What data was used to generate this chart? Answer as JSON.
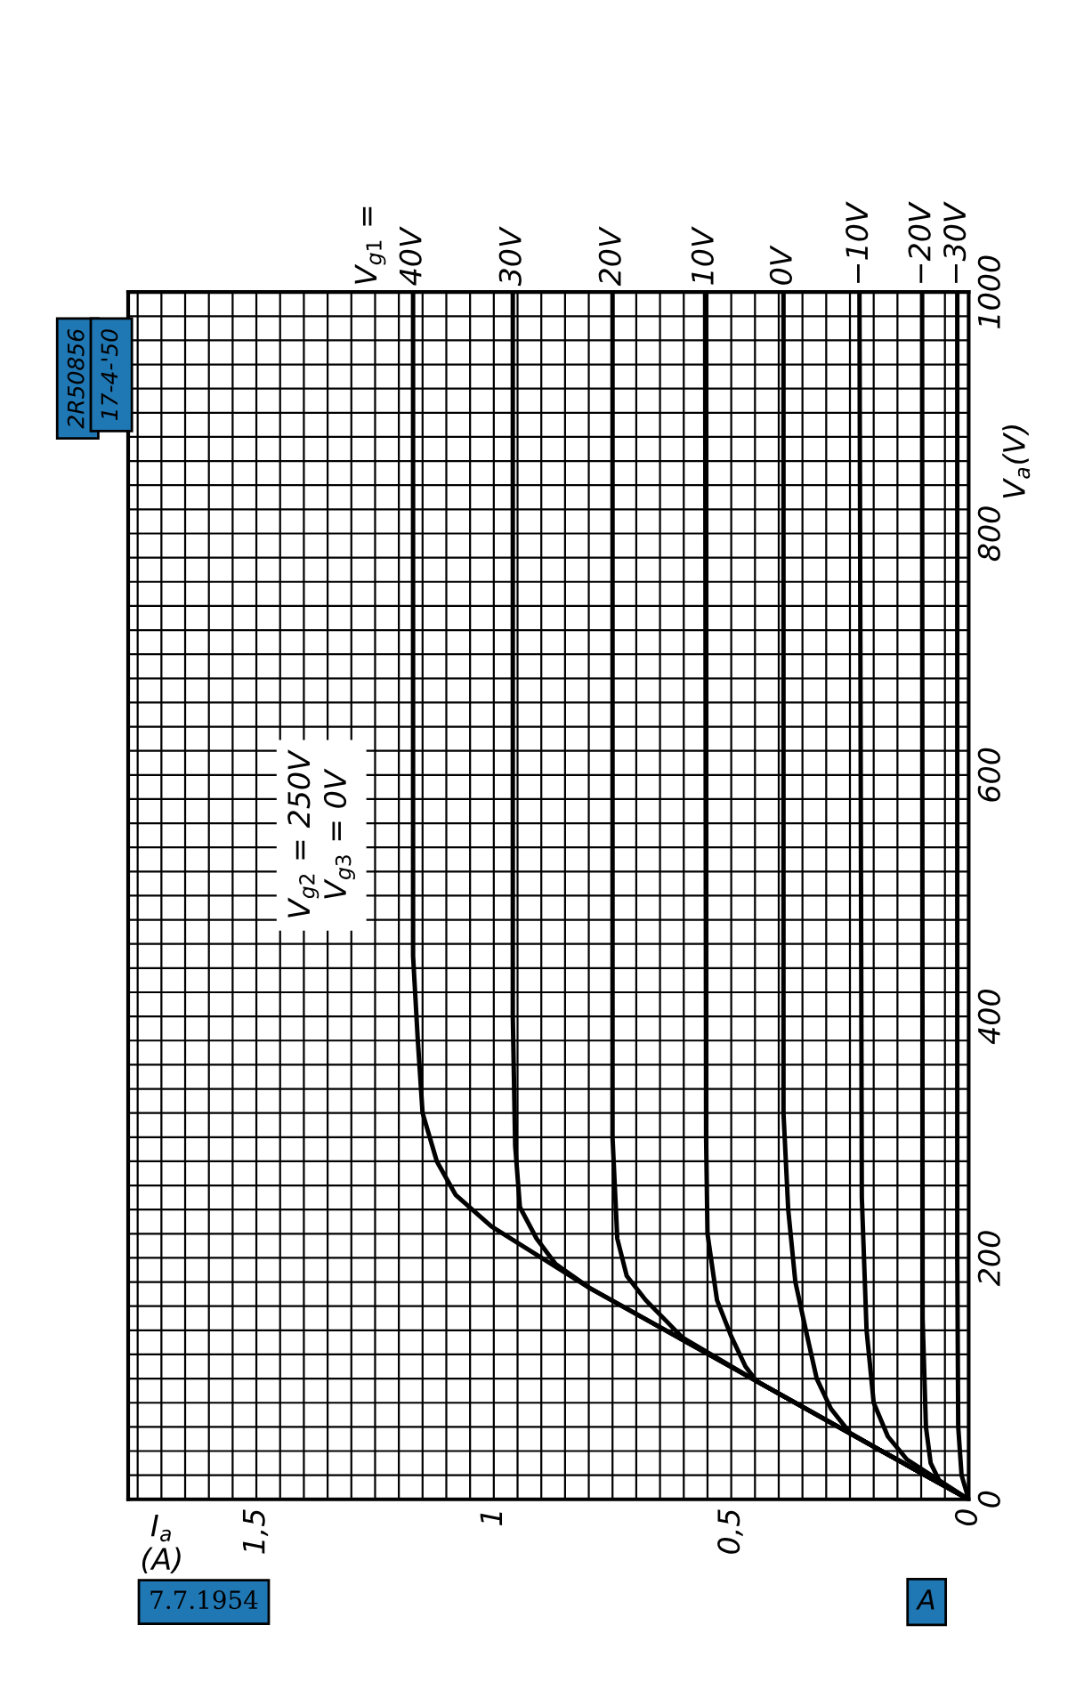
{
  "chart_data": {
    "type": "line",
    "legend_title": "V$_{g1}$ =",
    "xlabel": "I$_{a}$\n(A)",
    "ylabel": "V$_{a}$(V)",
    "annotations": [
      "V$_{g2}$ = 250V\nV$_{g3}$ = 0V",
      "2R50856",
      "17-4-'50",
      "7.7.1954",
      "A"
    ],
    "xlim": [
      1.77,
      0
    ],
    "ylim": [
      0,
      1000
    ],
    "xticks": [
      {
        "value": 1.5,
        "label": "1,5"
      },
      1,
      {
        "value": 0.5,
        "label": "0,5"
      },
      0,
      {
        "value": 1.75,
        "label": null
      },
      {
        "value": 1.7,
        "label": null
      },
      {
        "value": 1.65,
        "label": null
      },
      {
        "value": 1.6,
        "label": null
      },
      {
        "value": 1.55,
        "label": null
      },
      {
        "value": 1.45,
        "label": null
      },
      {
        "value": 1.4,
        "label": null
      },
      {
        "value": 1.35,
        "label": null
      },
      {
        "value": 1.3,
        "label": null
      },
      {
        "value": 1.25,
        "label": null
      },
      {
        "value": 1.2,
        "label": null
      },
      {
        "value": 1.15,
        "label": null
      },
      {
        "value": 1.1,
        "label": null
      },
      {
        "value": 1.05,
        "label": null
      },
      {
        "value": 0.95,
        "label": null
      },
      {
        "value": 0.9,
        "label": null
      },
      {
        "value": 0.85,
        "label": null
      },
      {
        "value": 0.8,
        "label": null
      },
      {
        "value": 0.75,
        "label": null
      },
      {
        "value": 0.7,
        "label": null
      },
      {
        "value": 0.65,
        "label": null
      },
      {
        "value": 0.6,
        "label": null
      },
      {
        "value": 0.55,
        "label": null
      },
      {
        "value": 0.45,
        "label": null
      },
      {
        "value": 0.4,
        "label": null
      },
      {
        "value": 0.35,
        "label": null
      },
      {
        "value": 0.3,
        "label": null
      },
      {
        "value": 0.25,
        "label": null
      },
      {
        "value": 0.2,
        "label": null
      },
      {
        "value": 0.15,
        "label": null
      },
      {
        "value": 0.1,
        "label": null
      },
      {
        "value": 0.05,
        "label": null
      }
    ],
    "yticks": [
      0,
      200,
      400,
      600,
      800,
      1000,
      {
        "value": 20,
        "label": null
      },
      {
        "value": 40,
        "label": null
      },
      {
        "value": 60,
        "label": null
      },
      {
        "value": 80,
        "label": null
      },
      {
        "value": 100,
        "label": null
      },
      {
        "value": 120,
        "label": null
      },
      {
        "value": 140,
        "label": null
      },
      {
        "value": 160,
        "label": null
      },
      {
        "value": 180,
        "label": null
      },
      {
        "value": 220,
        "label": null
      },
      {
        "value": 240,
        "label": null
      },
      {
        "value": 260,
        "label": null
      },
      {
        "value": 280,
        "label": null
      },
      {
        "value": 300,
        "label": null
      },
      {
        "value": 320,
        "label": null
      },
      {
        "value": 340,
        "label": null
      },
      {
        "value": 360,
        "label": null
      },
      {
        "value": 380,
        "label": null
      },
      {
        "value": 420,
        "label": null
      },
      {
        "value": 440,
        "label": null
      },
      {
        "value": 460,
        "label": null
      },
      {
        "value": 480,
        "label": null
      },
      {
        "value": 500,
        "label": null
      },
      {
        "value": 520,
        "label": null
      },
      {
        "value": 540,
        "label": null
      },
      {
        "value": 560,
        "label": null
      },
      {
        "value": 580,
        "label": null
      },
      {
        "value": 620,
        "label": null
      },
      {
        "value": 640,
        "label": null
      },
      {
        "value": 660,
        "label": null
      },
      {
        "value": 680,
        "label": null
      },
      {
        "value": 700,
        "label": null
      },
      {
        "value": 720,
        "label": null
      },
      {
        "value": 740,
        "label": null
      },
      {
        "value": 760,
        "label": null
      },
      {
        "value": 780,
        "label": null
      },
      {
        "value": 820,
        "label": null
      },
      {
        "value": 840,
        "label": null
      },
      {
        "value": 860,
        "label": null
      },
      {
        "value": 880,
        "label": null
      },
      {
        "value": 900,
        "label": null
      },
      {
        "value": 920,
        "label": null
      },
      {
        "value": 940,
        "label": null
      },
      {
        "value": 960,
        "label": null
      },
      {
        "value": 980,
        "label": null
      }
    ],
    "grid": true,
    "marker": "none",
    "line_style": "solid",
    "series": [
      {
        "name": "40V",
        "color": "#000000",
        "x": [
          0,
          0.188,
          0.447,
          0.798,
          1.005,
          1.08,
          1.12,
          1.15,
          1.16,
          1.17,
          1.17
        ],
        "values": [
          0,
          41,
          98,
          175,
          226,
          252,
          280,
          320,
          380,
          450,
          1000
        ]
      },
      {
        "name": "30V",
        "color": "#000000",
        "x": [
          0,
          0.188,
          0.447,
          0.798,
          0.87,
          0.91,
          0.945,
          0.955,
          0.96,
          0.96
        ],
        "values": [
          0,
          41,
          98,
          175,
          195,
          216,
          242,
          293,
          400,
          1000
        ]
      },
      {
        "name": "20V",
        "color": "#000000",
        "x": [
          0,
          0.188,
          0.447,
          0.603,
          0.64,
          0.68,
          0.72,
          0.74,
          0.75,
          0.75
        ],
        "values": [
          0,
          41,
          98,
          134,
          149,
          165,
          185,
          216,
          300,
          1000
        ]
      },
      {
        "name": "10V",
        "color": "#000000",
        "x": [
          0,
          0.188,
          0.447,
          0.47,
          0.5,
          0.53,
          0.55,
          0.553,
          0.555
        ],
        "values": [
          0,
          41,
          98,
          110,
          135,
          165,
          220,
          300,
          1000
        ]
      },
      {
        "name": "0V",
        "color": "#000000",
        "x": [
          0,
          0.188,
          0.25,
          0.29,
          0.32,
          0.34,
          0.365,
          0.38,
          0.39,
          0.39
        ],
        "values": [
          0,
          41,
          55,
          75,
          100,
          135,
          180,
          240,
          320,
          1000
        ]
      },
      {
        "name": "−10V",
        "color": "#000000",
        "x": [
          0,
          0.13,
          0.17,
          0.2,
          0.215,
          0.225,
          0.23
        ],
        "values": [
          0,
          33,
          52,
          80,
          140,
          250,
          1000
        ]
      },
      {
        "name": "−20V",
        "color": "#000000",
        "x": [
          0,
          0.06,
          0.08,
          0.09,
          0.097,
          0.098
        ],
        "values": [
          0,
          14,
          30,
          60,
          150,
          1000
        ]
      },
      {
        "name": "−30V",
        "color": "#000000",
        "x": [
          0,
          0.015,
          0.022,
          0.024,
          0.024
        ],
        "values": [
          0,
          20,
          60,
          200,
          1000
        ]
      }
    ]
  }
}
